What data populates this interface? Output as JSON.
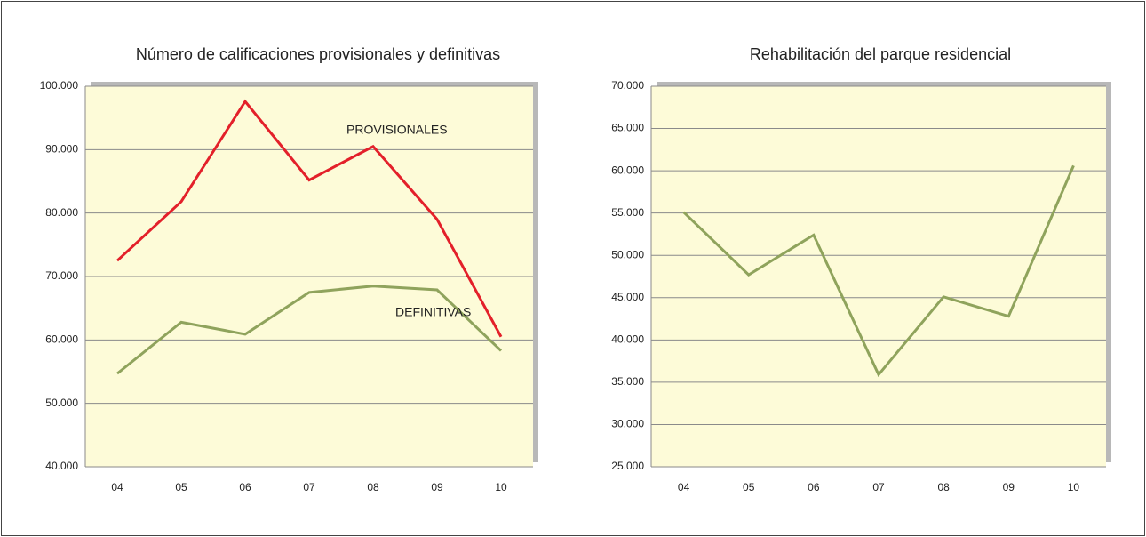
{
  "chart_data": [
    {
      "type": "line",
      "title": "Número de calificaciones provisionales y definitivas",
      "categories": [
        "04",
        "05",
        "06",
        "07",
        "08",
        "09",
        "10"
      ],
      "series": [
        {
          "name": "PROVISIONALES",
          "color": "#e3202a",
          "values": [
            72500,
            81800,
            97600,
            85200,
            90500,
            79000,
            60500
          ]
        },
        {
          "name": "DEFINITIVAS",
          "color": "#8fa35c",
          "values": [
            54700,
            62800,
            60900,
            67500,
            68500,
            67900,
            58300
          ]
        }
      ],
      "ylim": [
        40000,
        100000
      ],
      "yticks": [
        {
          "value": 40000,
          "label": "40.000"
        },
        {
          "value": 50000,
          "label": "50.000"
        },
        {
          "value": 60000,
          "label": "60.000"
        },
        {
          "value": 70000,
          "label": "70.000"
        },
        {
          "value": 80000,
          "label": "80.000"
        },
        {
          "value": 90000,
          "label": "90.000"
        },
        {
          "value": 100000,
          "label": "100.000"
        }
      ],
      "grid": true
    },
    {
      "type": "line",
      "title": "Rehabilitación del parque residencial",
      "categories": [
        "04",
        "05",
        "06",
        "07",
        "08",
        "09",
        "10"
      ],
      "series": [
        {
          "color": "#8fa35c",
          "values": [
            55100,
            47700,
            52400,
            35900,
            45100,
            42800,
            60600
          ]
        }
      ],
      "ylim": [
        25000,
        70000
      ],
      "yticks": [
        {
          "value": 25000,
          "label": "25.000"
        },
        {
          "value": 30000,
          "label": "30.000"
        },
        {
          "value": 35000,
          "label": "35.000"
        },
        {
          "value": 40000,
          "label": "40.000"
        },
        {
          "value": 45000,
          "label": "45.000"
        },
        {
          "value": 50000,
          "label": "50.000"
        },
        {
          "value": 55000,
          "label": "55.000"
        },
        {
          "value": 60000,
          "label": "60.000"
        },
        {
          "value": 65000,
          "label": "65.000"
        },
        {
          "value": 70000,
          "label": "70.000"
        }
      ],
      "grid": true
    }
  ]
}
